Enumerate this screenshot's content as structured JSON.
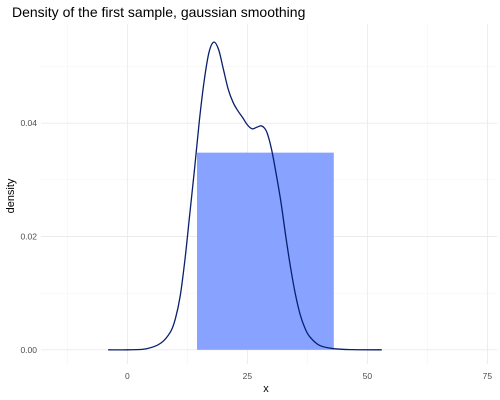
{
  "chart_data": {
    "type": "area",
    "title": "Density of the first sample, gaussian smoothing",
    "xlabel": "x",
    "ylabel": "density",
    "xlim": [
      -18,
      77
    ],
    "ylim": [
      -0.0025,
      0.0575
    ],
    "x_ticks": [
      0,
      25,
      50,
      75
    ],
    "x_tick_labels": [
      "0",
      "25",
      "50",
      "75"
    ],
    "x_minor_ticks": [
      -12.5,
      12.5,
      37.5,
      62.5
    ],
    "y_ticks": [
      0.0,
      0.02,
      0.04
    ],
    "y_tick_labels": [
      "0.00",
      "0.02",
      "0.04"
    ],
    "y_minor_ticks": [
      0.01,
      0.03,
      0.05
    ],
    "grid": true,
    "legend": "none",
    "bars": [
      {
        "x_start": 14.5,
        "x_end": 43,
        "value": 0.0348,
        "color": "#87A3FF"
      }
    ],
    "series": [
      {
        "color": "#0A1F6E",
        "x": [
          -4,
          0,
          4,
          7,
          9,
          10,
          11,
          12,
          13,
          14,
          15,
          16,
          17,
          18,
          19,
          20,
          21,
          22,
          23,
          24,
          25,
          26,
          27,
          28,
          29,
          30,
          31,
          32,
          33,
          34,
          35,
          36,
          37,
          38,
          40,
          43,
          47,
          53
        ],
        "y": [
          0.0,
          0.0,
          0.0002,
          0.0012,
          0.0032,
          0.0055,
          0.0095,
          0.016,
          0.024,
          0.032,
          0.0405,
          0.0475,
          0.0525,
          0.0543,
          0.053,
          0.0495,
          0.046,
          0.0437,
          0.0422,
          0.041,
          0.0397,
          0.039,
          0.0393,
          0.0395,
          0.0385,
          0.0355,
          0.031,
          0.026,
          0.02,
          0.0145,
          0.0098,
          0.0062,
          0.0038,
          0.0023,
          0.0008,
          0.0002,
          3e-05,
          0.0
        ]
      }
    ]
  }
}
